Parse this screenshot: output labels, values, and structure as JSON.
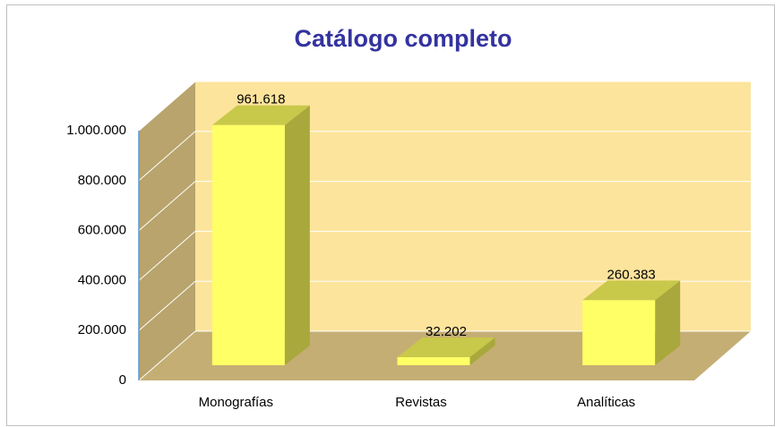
{
  "chart_data": {
    "type": "bar3d",
    "title": "Catálogo completo",
    "categories": [
      "Monografías",
      "Revistas",
      "Analíticas"
    ],
    "values": [
      961618,
      32202,
      260383
    ],
    "value_labels": [
      "961.618",
      "32.202",
      "260.383"
    ],
    "color": "#ffff66",
    "ylim": [
      0,
      1000000
    ],
    "yticks": [
      0,
      {
        "value": 200000,
        "label": "200.000"
      },
      {
        "value": 400000,
        "label": "400.000"
      },
      {
        "value": 600000,
        "label": "600.000"
      },
      {
        "value": 800000,
        "label": "800.000"
      },
      {
        "value": 1000000,
        "label": "1.000.000"
      }
    ],
    "grid": true
  }
}
